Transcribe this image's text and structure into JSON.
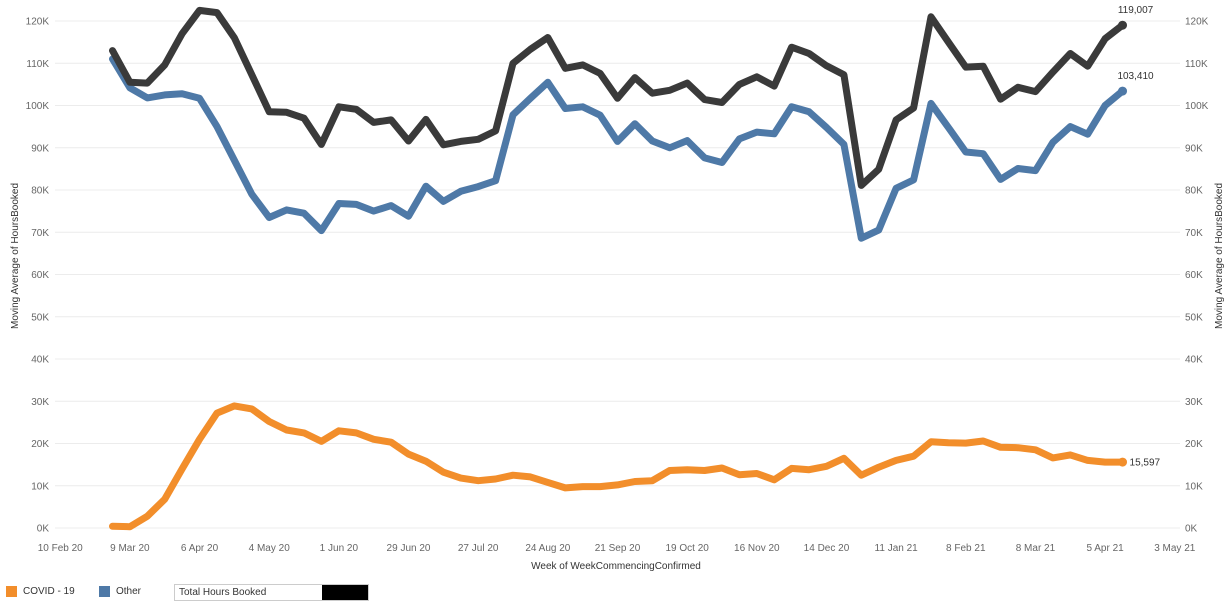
{
  "chart_data": {
    "type": "line",
    "title": "",
    "xlabel": "Week of WeekCommencingConfirmed",
    "ylabel": "Moving Average of HoursBooked",
    "ylabel_right": "Moving Average of HoursBooked",
    "ylim": [
      0,
      120000
    ],
    "y_ticks": [
      0,
      10000,
      20000,
      30000,
      40000,
      50000,
      60000,
      70000,
      80000,
      90000,
      100000,
      110000,
      120000
    ],
    "y_tick_labels": [
      "0K",
      "10K",
      "20K",
      "30K",
      "40K",
      "50K",
      "60K",
      "70K",
      "80K",
      "90K",
      "100K",
      "110K",
      "120K"
    ],
    "x_tick_labels": [
      "10 Feb 20",
      "9 Mar 20",
      "6 Apr 20",
      "4 May 20",
      "1 Jun 20",
      "29 Jun 20",
      "27 Jul 20",
      "24 Aug 20",
      "21 Sep 20",
      "19 Oct 20",
      "16 Nov 20",
      "14 Dec 20",
      "11 Jan 21",
      "8 Feb 21",
      "8 Mar 21",
      "5 Apr 21",
      "3 May 21"
    ],
    "x_tick_weeks": [
      0,
      4,
      8,
      12,
      16,
      20,
      24,
      28,
      32,
      36,
      40,
      44,
      48,
      52,
      56,
      60,
      64
    ],
    "x_range_weeks": [
      -0.3,
      64.3
    ],
    "first_week_index": 3,
    "grid": true,
    "legend_position": "bottom-left",
    "series": [
      {
        "name": "COVID - 19",
        "color": "#f28e2b",
        "end_label": "15,597",
        "values": [
          400,
          300,
          2800,
          6800,
          14000,
          21000,
          27200,
          28900,
          28200,
          25200,
          23200,
          22500,
          20500,
          23000,
          22500,
          21000,
          20300,
          17500,
          15800,
          13200,
          11800,
          11200,
          11600,
          12500,
          12100,
          10800,
          9500,
          9800,
          9800,
          10200,
          11000,
          11200,
          13600,
          13800,
          13600,
          14200,
          12600,
          12900,
          11400,
          14100,
          13800,
          14600,
          16500,
          12500,
          14400,
          16000,
          17000,
          20400,
          20200,
          20100,
          20600,
          19100,
          19000,
          18500,
          16600,
          17300,
          16000,
          15600,
          15597
        ]
      },
      {
        "name": "Other",
        "color": "#4e79a7",
        "end_label": "103,410",
        "values": [
          111000,
          104200,
          101800,
          102500,
          102800,
          101700,
          95000,
          87000,
          79000,
          73500,
          75300,
          74500,
          70400,
          76800,
          76600,
          75000,
          76300,
          73800,
          80900,
          77300,
          79700,
          80800,
          82200,
          97800,
          101700,
          105500,
          99300,
          99700,
          97700,
          91500,
          95700,
          91600,
          90000,
          91700,
          87600,
          86500,
          92100,
          93700,
          93300,
          99700,
          98500,
          94800,
          90800,
          68600,
          70500,
          80400,
          82400,
          100500,
          94800,
          89000,
          88600,
          82500,
          85100,
          84600,
          91300,
          95000,
          93200,
          100000,
          103410
        ]
      },
      {
        "name": "Total Hours Booked",
        "color": "#3a3a3a",
        "end_label": "119,007",
        "values": [
          113000,
          105500,
          105300,
          109600,
          117000,
          122500,
          122000,
          116000,
          107300,
          98500,
          98400,
          97000,
          90800,
          99700,
          99100,
          96000,
          96600,
          91600,
          96700,
          90700,
          91500,
          92000,
          94000,
          110000,
          113300,
          116100,
          108800,
          109600,
          107600,
          101700,
          106600,
          102900,
          103600,
          105300,
          101400,
          100700,
          105000,
          106800,
          104600,
          113800,
          112300,
          109400,
          107300,
          81100,
          84900,
          96600,
          99400,
          121000,
          115000,
          109100,
          109300,
          101500,
          104300,
          103300,
          107900,
          112300,
          109300,
          115800,
          119007
        ]
      }
    ]
  }
}
